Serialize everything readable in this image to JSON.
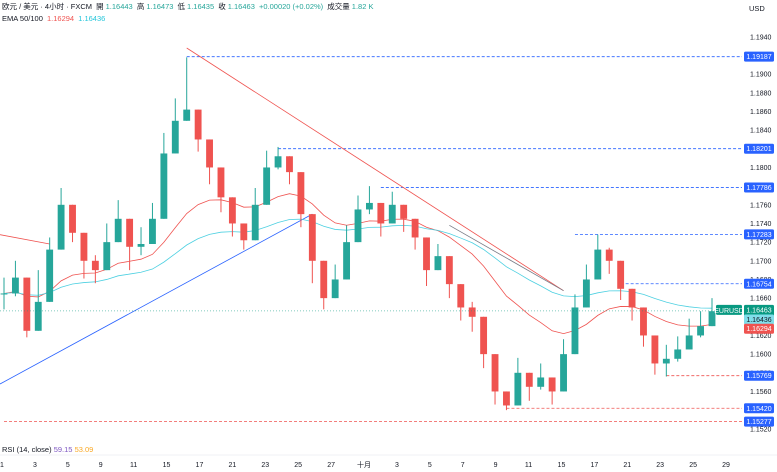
{
  "header": {
    "pair": "欧元 / 美元 · 4小时 · FXCM",
    "open_label": "開",
    "open": "1.16443",
    "high_label": "高",
    "high": "1.16473",
    "low_label": "低",
    "low": "1.16435",
    "close_label": "收",
    "close": "1.16463",
    "change": "+0.00020 (+0.02%)",
    "volume_label": "成交量",
    "volume": "1.82 K",
    "ema_label": "EMA 50/100",
    "ema50_value": "1.16294",
    "ema100_value": "1.16436"
  },
  "currency": "USD",
  "rsi": {
    "label": "RSI (14, close)",
    "value1": "59.15",
    "value2": "53.09"
  },
  "colors": {
    "up": "#26a69a",
    "down": "#ef5350",
    "ema50": "#ef5350",
    "ema100": "#4dd0e1",
    "level_dash": "#2962ff",
    "support_dash": "#ef5350",
    "trend_down": "#ef5350",
    "trend_up": "#2962ff",
    "last_price": "#089981",
    "grey_trend": "#787b86"
  },
  "chart_data": {
    "type": "candlestick",
    "title": "欧元 / 美元 · 4小时 · FXCM",
    "ylabel": "USD",
    "ylim": [
      1.1508,
      1.1958
    ],
    "y_ticks": [
      1.194,
      1.192,
      1.19,
      1.188,
      1.186,
      1.184,
      1.182,
      1.18,
      1.178,
      1.176,
      1.174,
      1.172,
      1.17,
      1.168,
      1.166,
      1.164,
      1.162,
      1.16,
      1.158,
      1.156,
      1.154,
      1.152
    ],
    "x_tick_labels": [
      "1",
      "3",
      "5",
      "9",
      "11",
      "15",
      "17",
      "21",
      "23",
      "25",
      "27",
      "十月",
      "3",
      "5",
      "7",
      "9",
      "11",
      "15",
      "17",
      "21",
      "23",
      "25",
      "29"
    ],
    "path": [
      [
        1.1665,
        1.1682,
        1.1648
      ],
      [
        1.1682,
        1.17,
        1.1662
      ],
      [
        1.1625,
        1.1661,
        1.1618
      ],
      [
        1.1656,
        1.169,
        1.1647
      ],
      [
        1.1712,
        1.1725,
        1.1679
      ],
      [
        1.176,
        1.1778,
        1.1741
      ],
      [
        1.173,
        1.176,
        1.172
      ],
      [
        1.17,
        1.1718,
        1.1681
      ],
      [
        1.169,
        1.1706,
        1.1676
      ],
      [
        1.172,
        1.174,
        1.1704
      ],
      [
        1.1745,
        1.1765,
        1.1724
      ],
      [
        1.1715,
        1.173,
        1.169
      ],
      [
        1.1718,
        1.1736,
        1.1706
      ],
      [
        1.1745,
        1.1762,
        1.1732
      ],
      [
        1.1815,
        1.1837,
        1.18
      ],
      [
        1.185,
        1.1874,
        1.1836
      ],
      [
        1.1862,
        1.1918,
        1.185
      ],
      [
        1.183,
        1.1845,
        1.1817
      ],
      [
        1.18,
        1.1813,
        1.1782
      ],
      [
        1.1768,
        1.1786,
        1.1752
      ],
      [
        1.174,
        1.1756,
        1.1726
      ],
      [
        1.1722,
        1.1738,
        1.1712
      ],
      [
        1.176,
        1.1778,
        1.175
      ],
      [
        1.18,
        1.1818,
        1.179
      ],
      [
        1.1812,
        1.1822,
        1.1798
      ],
      [
        1.1795,
        1.1806,
        1.1782
      ],
      [
        1.175,
        1.1762,
        1.1736
      ],
      [
        1.17,
        1.1719,
        1.1676
      ],
      [
        1.166,
        1.1679,
        1.1648
      ],
      [
        1.168,
        1.1696,
        1.1668
      ],
      [
        1.172,
        1.1738,
        1.1708
      ],
      [
        1.1755,
        1.177,
        1.1742
      ],
      [
        1.1762,
        1.178,
        1.175
      ],
      [
        1.174,
        1.1752,
        1.1726
      ],
      [
        1.176,
        1.1774,
        1.1748
      ],
      [
        1.1745,
        1.1758,
        1.1731
      ],
      [
        1.1725,
        1.1736,
        1.1712
      ],
      [
        1.169,
        1.1703,
        1.1673
      ],
      [
        1.1705,
        1.1718,
        1.1694
      ],
      [
        1.1675,
        1.169,
        1.166
      ],
      [
        1.165,
        1.1662,
        1.1636
      ],
      [
        1.164,
        1.1656,
        1.1624
      ],
      [
        1.16,
        1.1616,
        1.1585
      ],
      [
        1.156,
        1.1578,
        1.1546
      ],
      [
        1.1545,
        1.156,
        1.154
      ],
      [
        1.158,
        1.1596,
        1.1566
      ],
      [
        1.1565,
        1.1579,
        1.155
      ],
      [
        1.1575,
        1.159,
        1.1562
      ],
      [
        1.156,
        1.1575,
        1.1546
      ],
      [
        1.16,
        1.1616,
        1.1587
      ],
      [
        1.165,
        1.1664,
        1.164
      ],
      [
        1.168,
        1.1696,
        1.167
      ],
      [
        1.1712,
        1.1728,
        1.17
      ],
      [
        1.17,
        1.1714,
        1.1686
      ],
      [
        1.167,
        1.1684,
        1.1658
      ],
      [
        1.165,
        1.1666,
        1.1636
      ],
      [
        1.162,
        1.1636,
        1.1608
      ],
      [
        1.159,
        1.1606,
        1.1578
      ],
      [
        1.1595,
        1.161,
        1.1576
      ],
      [
        1.1605,
        1.1619,
        1.1592
      ],
      [
        1.162,
        1.1638,
        1.161
      ],
      [
        1.163,
        1.1646,
        1.1618
      ],
      [
        1.1646,
        1.166,
        1.1636
      ]
    ],
    "levels": [
      {
        "value": 1.19187,
        "label": "1.19187",
        "style": "dashed"
      },
      {
        "value": 1.18201,
        "label": "1.18201",
        "style": "dashed"
      },
      {
        "value": 1.17786,
        "label": "1.17786",
        "style": "dashed"
      },
      {
        "value": 1.17283,
        "label": "1.17283",
        "style": "dashed"
      },
      {
        "value": 1.16754,
        "label": "1.16754",
        "style": "dashed"
      },
      {
        "value": 1.15769,
        "label": "1.15769",
        "style": "dashed"
      },
      {
        "value": 1.1542,
        "label": "1.15420",
        "style": "dashed"
      },
      {
        "value": 1.15277,
        "label": "1.15277",
        "style": "dashed"
      }
    ],
    "last_price": {
      "value": 1.16463,
      "symbol": "EURUSD",
      "label": "1.16463",
      "countdown": "02:47:53"
    },
    "ema100_badge": {
      "value": 1.16436,
      "label": "1.16436"
    },
    "ema50_badge": {
      "value": 1.16294,
      "label": "1.16294"
    }
  }
}
